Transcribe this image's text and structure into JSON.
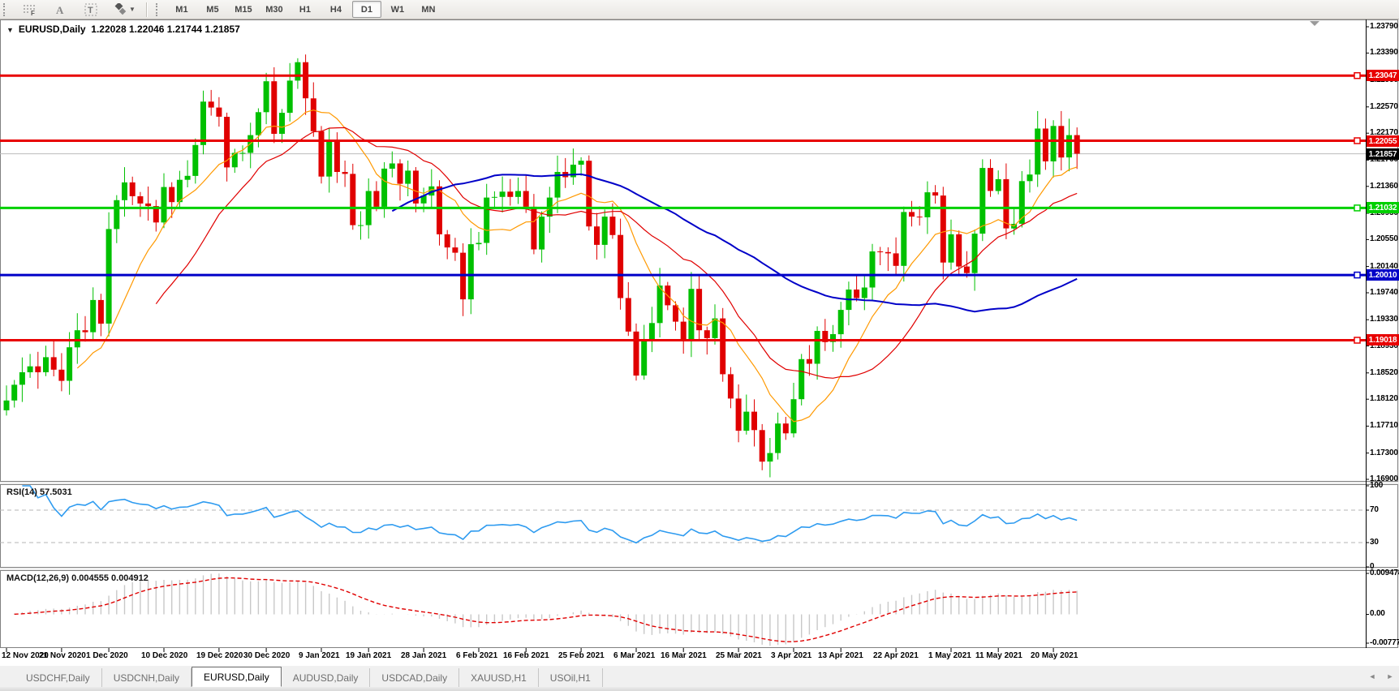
{
  "toolbar": {
    "tools": [
      {
        "name": "fibonacci"
      },
      {
        "name": "text"
      },
      {
        "name": "label"
      },
      {
        "name": "arrows"
      }
    ],
    "timeframes": [
      {
        "label": "M1",
        "active": false
      },
      {
        "label": "M5",
        "active": false
      },
      {
        "label": "M15",
        "active": false
      },
      {
        "label": "M30",
        "active": false
      },
      {
        "label": "H1",
        "active": false
      },
      {
        "label": "H4",
        "active": false
      },
      {
        "label": "D1",
        "active": true
      },
      {
        "label": "W1",
        "active": false
      },
      {
        "label": "MN",
        "active": false
      }
    ]
  },
  "chart": {
    "title_symbol": "EURUSD,Daily",
    "title_ohlc": "1.22028 1.22046 1.21744 1.21857",
    "price_axis_ticks": [
      "1.23790",
      "1.23390",
      "1.22980",
      "1.22570",
      "1.22170",
      "1.21760",
      "1.21360",
      "1.20950",
      "1.20550",
      "1.20140",
      "1.19740",
      "1.19330",
      "1.18930",
      "1.18520",
      "1.18120",
      "1.17710",
      "1.17300",
      "1.16900"
    ],
    "levels": [
      {
        "label": "1.23047",
        "value": 1.23047,
        "color": "#e80000",
        "text_color": "#ffffff"
      },
      {
        "label": "1.22055",
        "value": 1.22055,
        "color": "#e80000",
        "text_color": "#ffffff"
      },
      {
        "label": "1.21032",
        "value": 1.21032,
        "color": "#00d000",
        "text_color": "#ffffff"
      },
      {
        "label": "1.20010",
        "value": 1.2001,
        "color": "#0000c8",
        "text_color": "#ffffff"
      },
      {
        "label": "1.19018",
        "value": 1.19018,
        "color": "#e80000",
        "text_color": "#ffffff"
      }
    ],
    "current_price": {
      "label": "1.21857",
      "value": 1.21857,
      "box_color": "#000000",
      "text_color": "#ffffff",
      "line_color": "#bcbcbc"
    },
    "date_labels": [
      {
        "label": "12 Nov 2020",
        "i": 0
      },
      {
        "label": "21 Nov 2020",
        "i": 7
      },
      {
        "label": "1 Dec 2020",
        "i": 13
      },
      {
        "label": "10 Dec 2020",
        "i": 20
      },
      {
        "label": "19 Dec 2020",
        "i": 27
      },
      {
        "label": "30 Dec 2020",
        "i": 33
      },
      {
        "label": "9 Jan 2021",
        "i": 40
      },
      {
        "label": "19 Jan 2021",
        "i": 46
      },
      {
        "label": "28 Jan 2021",
        "i": 53
      },
      {
        "label": "6 Feb 2021",
        "i": 60
      },
      {
        "label": "16 Feb 2021",
        "i": 66
      },
      {
        "label": "25 Feb 2021",
        "i": 73
      },
      {
        "label": "6 Mar 2021",
        "i": 80
      },
      {
        "label": "16 Mar 2021",
        "i": 86
      },
      {
        "label": "25 Mar 2021",
        "i": 93
      },
      {
        "label": "3 Apr 2021",
        "i": 100
      },
      {
        "label": "13 Apr 2021",
        "i": 106
      },
      {
        "label": "22 Apr 2021",
        "i": 113
      },
      {
        "label": "1 May 2021",
        "i": 120
      },
      {
        "label": "11 May 2021",
        "i": 126
      },
      {
        "label": "20 May 2021",
        "i": 133
      }
    ],
    "chart_data": {
      "type": "candlestick",
      "symbol": "EURUSD",
      "timeframe": "Daily",
      "visible_price_range": [
        1.169,
        1.2379
      ],
      "first_open": 1.1795,
      "closes": [
        1.181,
        1.1834,
        1.1853,
        1.1862,
        1.1853,
        1.1876,
        1.1857,
        1.184,
        1.1891,
        1.1917,
        1.1914,
        1.1963,
        1.1927,
        1.2071,
        1.2115,
        1.2142,
        1.2121,
        1.211,
        1.2106,
        1.2081,
        1.2135,
        1.2112,
        1.2146,
        1.2152,
        1.2199,
        1.2265,
        1.2256,
        1.2242,
        1.2165,
        1.2187,
        1.2187,
        1.2214,
        1.2249,
        1.2296,
        1.2216,
        1.2248,
        1.2297,
        1.2325,
        1.227,
        1.222,
        1.2151,
        1.2207,
        1.2158,
        1.2155,
        1.2077,
        1.2077,
        1.2129,
        1.2105,
        1.2163,
        1.2171,
        1.214,
        1.216,
        1.211,
        1.2122,
        1.2136,
        1.2063,
        1.2043,
        1.2035,
        1.1964,
        1.2048,
        1.205,
        1.2119,
        1.212,
        1.2128,
        1.212,
        1.2129,
        1.2105,
        1.204,
        1.209,
        1.2119,
        1.2158,
        1.215,
        1.2169,
        1.2175,
        1.2075,
        1.2047,
        1.209,
        1.2062,
        1.1966,
        1.1915,
        1.1848,
        1.19,
        1.1928,
        1.1985,
        1.1955,
        1.193,
        1.19,
        1.198,
        1.1917,
        1.1905,
        1.1935,
        1.185,
        1.1813,
        1.1764,
        1.1793,
        1.1765,
        1.1717,
        1.173,
        1.1775,
        1.176,
        1.1812,
        1.1873,
        1.1866,
        1.1916,
        1.1899,
        1.1911,
        1.1948,
        1.1979,
        1.1966,
        1.1982,
        1.2037,
        1.2036,
        1.2034,
        1.2015,
        1.2097,
        1.209,
        1.2089,
        1.2127,
        1.2122,
        1.202,
        1.2063,
        1.2014,
        1.2004,
        1.2064,
        1.2164,
        1.2129,
        1.2147,
        1.2072,
        1.2079,
        1.2144,
        1.2154,
        1.2224,
        1.2174,
        1.2228,
        1.218,
        1.2214,
        1.21857
      ],
      "up_color": "#00c000",
      "down_color": "#e00000",
      "moving_averages": [
        {
          "period": 10,
          "color": "#ff9900",
          "width": 1.2
        },
        {
          "period": 20,
          "color": "#e00000",
          "width": 1.2
        },
        {
          "period": 50,
          "color": "#0000c8",
          "width": 2
        }
      ]
    }
  },
  "rsi": {
    "label": "RSI(14) 57.5031",
    "period": 14,
    "last_value": 57.5031,
    "axis_ticks": [
      {
        "label": "100",
        "v": 100
      },
      {
        "label": "70",
        "v": 70
      },
      {
        "label": "30",
        "v": 30
      },
      {
        "label": "0",
        "v": 0
      }
    ],
    "level_lines": [
      70,
      30
    ],
    "line_color": "#2e9bf0"
  },
  "macd": {
    "label": "MACD(12,26,9) 0.004555 0.004912",
    "fast": 12,
    "slow": 26,
    "signal": 9,
    "main_last": 0.004555,
    "signal_last": 0.004912,
    "axis_top": "0.009478",
    "axis_zero": "0.00",
    "axis_bottom": "-0.00777",
    "hist_color": "#c8c8c8",
    "signal_color": "#e00000"
  },
  "tabs": {
    "items": [
      {
        "label": "USDCHF,Daily",
        "active": false
      },
      {
        "label": "USDCNH,Daily",
        "active": false
      },
      {
        "label": "EURUSD,Daily",
        "active": true
      },
      {
        "label": "AUDUSD,Daily",
        "active": false
      },
      {
        "label": "USDCAD,Daily",
        "active": false
      },
      {
        "label": "XAUUSD,H1",
        "active": false
      },
      {
        "label": "USOil,H1",
        "active": false
      }
    ],
    "scroll_left": "◄",
    "scroll_right": "►"
  }
}
